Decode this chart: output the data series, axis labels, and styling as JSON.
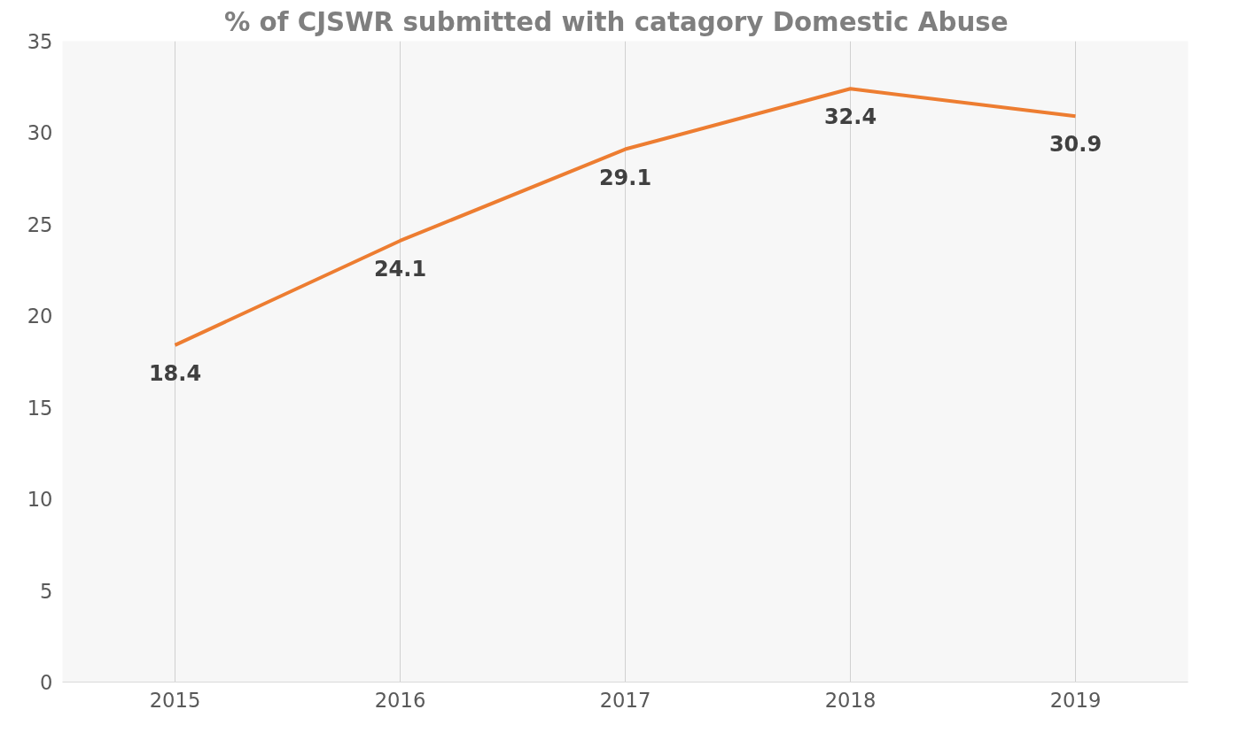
{
  "chart_data": {
    "type": "line",
    "title": "% of CJSWR submitted  with catagory  Domestic Abuse",
    "categories": [
      "2015",
      "2016",
      "2017",
      "2018",
      "2019"
    ],
    "series": [
      {
        "color": "#ed7d31",
        "values": [
          18.4,
          24.1,
          29.1,
          32.4,
          30.9
        ]
      }
    ],
    "ylim": [
      0,
      35
    ],
    "yticks": [
      0,
      5,
      10,
      15,
      20,
      25,
      30,
      35
    ],
    "grid": "x",
    "data_labels": true,
    "marker": "none",
    "line_style": "solid"
  }
}
